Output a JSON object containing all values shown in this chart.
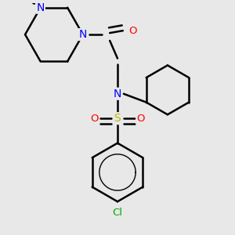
{
  "background_color": "#e8e8e8",
  "atom_colors": {
    "N": "#0000ff",
    "O": "#ff0000",
    "S": "#bbbb00",
    "Cl": "#00aa00",
    "C": "#000000"
  },
  "figsize": [
    3.0,
    3.0
  ],
  "dpi": 100
}
